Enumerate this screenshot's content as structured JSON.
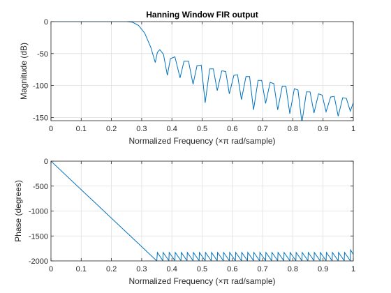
{
  "chart_data": [
    {
      "type": "line",
      "title": "Hanning Window FIR output",
      "xlabel": "Normalized Frequency  (×π rad/sample)",
      "ylabel": "Magnitude (dB)",
      "xlim": [
        0,
        1
      ],
      "ylim": [
        -155,
        0
      ],
      "xticks": [
        "0",
        "0.1",
        "0.2",
        "0.3",
        "0.4",
        "0.5",
        "0.6",
        "0.7",
        "0.8",
        "0.9",
        "1"
      ],
      "yticks": [
        "0",
        "-50",
        "-100",
        "-150"
      ],
      "grid": true,
      "color": "#0072BD",
      "series": [
        {
          "x": [
            0,
            0.05,
            0.1,
            0.15,
            0.2,
            0.25,
            0.27,
            0.29,
            0.31,
            0.33,
            0.345,
            0.352,
            0.36,
            0.372,
            0.385,
            0.395,
            0.41,
            0.427,
            0.44,
            0.455,
            0.47,
            0.483,
            0.497,
            0.51,
            0.525,
            0.537,
            0.55,
            0.565,
            0.578,
            0.59,
            0.605,
            0.617,
            0.63,
            0.645,
            0.657,
            0.67,
            0.685,
            0.697,
            0.71,
            0.725,
            0.737,
            0.75,
            0.765,
            0.777,
            0.79,
            0.805,
            0.817,
            0.83,
            0.845,
            0.857,
            0.87,
            0.885,
            0.897,
            0.91,
            0.925,
            0.937,
            0.95,
            0.965,
            0.977,
            0.99,
            1.0
          ],
          "y": [
            0,
            0,
            0,
            0,
            0,
            0,
            -1,
            -6,
            -18,
            -40,
            -64,
            -48,
            -44,
            -51,
            -84,
            -58,
            -55,
            -88,
            -62,
            -62,
            -98,
            -69,
            -68,
            -127,
            -74,
            -74,
            -108,
            -77,
            -78,
            -113,
            -84,
            -83,
            -122,
            -86,
            -86,
            -138,
            -92,
            -92,
            -128,
            -95,
            -97,
            -138,
            -101,
            -101,
            -144,
            -105,
            -107,
            -158,
            -110,
            -110,
            -143,
            -113,
            -115,
            -141,
            -118,
            -117,
            -148,
            -119,
            -120,
            -140,
            -127
          ]
        }
      ]
    },
    {
      "type": "line",
      "title": "",
      "xlabel": "Normalized Frequency  (×π rad/sample)",
      "ylabel": "Phase (degrees)",
      "xlim": [
        0,
        1
      ],
      "ylim": [
        -2000,
        0
      ],
      "xticks": [
        "0",
        "0.1",
        "0.2",
        "0.3",
        "0.4",
        "0.5",
        "0.6",
        "0.7",
        "0.8",
        "0.9",
        "1"
      ],
      "yticks": [
        "0",
        "-500",
        "-1000",
        "-1500",
        "-2000"
      ],
      "grid": true,
      "color": "#0072BD",
      "series": [
        {
          "x": [
            0,
            0.35,
            0.352,
            0.37,
            0.371,
            0.39,
            0.391,
            0.41,
            0.411,
            0.43,
            0.431,
            0.45,
            0.451,
            0.47,
            0.471,
            0.49,
            0.491,
            0.51,
            0.511,
            0.53,
            0.531,
            0.55,
            0.551,
            0.57,
            0.571,
            0.59,
            0.591,
            0.61,
            0.611,
            0.63,
            0.631,
            0.65,
            0.651,
            0.67,
            0.671,
            0.69,
            0.691,
            0.71,
            0.711,
            0.73,
            0.731,
            0.75,
            0.751,
            0.77,
            0.771,
            0.79,
            0.791,
            0.81,
            0.811,
            0.83,
            0.831,
            0.85,
            0.851,
            0.87,
            0.871,
            0.89,
            0.891,
            0.91,
            0.911,
            0.93,
            0.931,
            0.95,
            0.951,
            0.97,
            0.971,
            0.99,
            0.991,
            1.0
          ],
          "y": [
            0,
            -2000,
            -1830,
            -1995,
            -1830,
            -1995,
            -1830,
            -1995,
            -1830,
            -1995,
            -1830,
            -1995,
            -1830,
            -1995,
            -1830,
            -1995,
            -1830,
            -1995,
            -1830,
            -1995,
            -1830,
            -1995,
            -1830,
            -1995,
            -1830,
            -1995,
            -1830,
            -1995,
            -1830,
            -1995,
            -1830,
            -1995,
            -1830,
            -1995,
            -1830,
            -1995,
            -1830,
            -1995,
            -1830,
            -1995,
            -1830,
            -1995,
            -1830,
            -1995,
            -1830,
            -1995,
            -1830,
            -1995,
            -1830,
            -1995,
            -1830,
            -1995,
            -1830,
            -1995,
            -1830,
            -1995,
            -1830,
            -1995,
            -1830,
            -1995,
            -1830,
            -1995,
            -1830,
            -1995,
            -1830,
            -1995,
            -1780,
            -1870
          ]
        }
      ]
    }
  ]
}
